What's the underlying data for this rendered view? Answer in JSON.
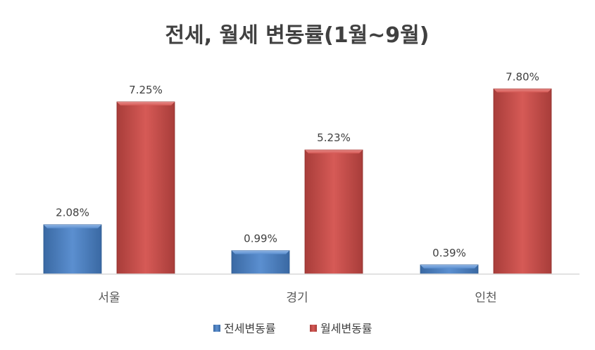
{
  "chart_data": {
    "type": "bar",
    "title": "전세, 월세 변동률(1월~9월)",
    "categories": [
      "서울",
      "경기",
      "인천"
    ],
    "series": [
      {
        "name": "전세변동률",
        "values": [
          2.08,
          0.99,
          0.39
        ],
        "labels": [
          "2.08%",
          "0.99%",
          "0.39%"
        ],
        "color": "#4a7ebb"
      },
      {
        "name": "월세변동률",
        "values": [
          7.25,
          5.23,
          7.8
        ],
        "labels": [
          "7.25%",
          "5.23%",
          "7.80%"
        ],
        "color": "#c0504d"
      }
    ],
    "ylim": [
      0,
      8.5
    ],
    "grid": false,
    "legend": "bottom"
  }
}
